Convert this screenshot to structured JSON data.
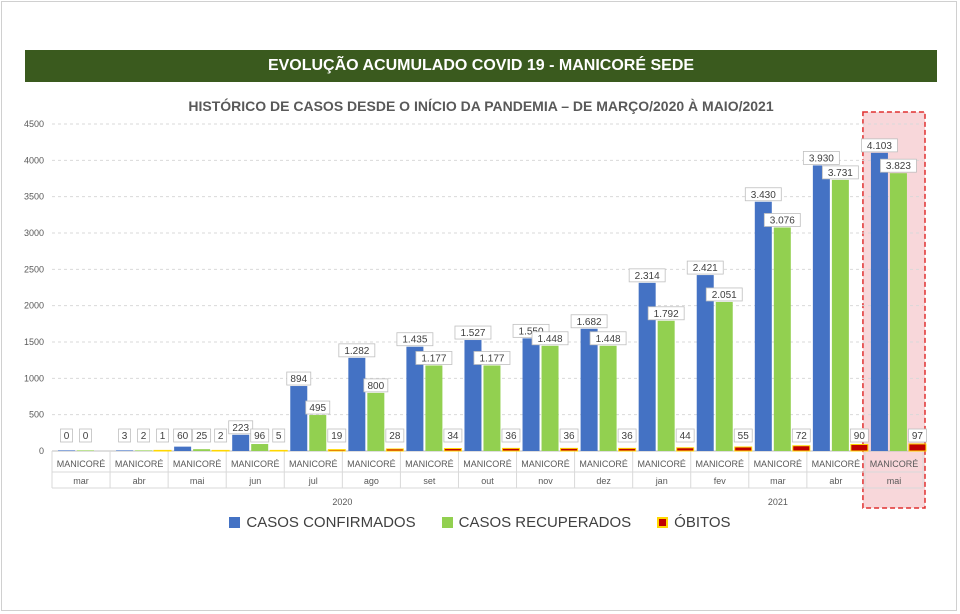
{
  "banner_title": "EVOLUÇÃO ACUMULADO COVID 19 - MANICORÉ SEDE",
  "colors": {
    "banner": "#3a5a1e",
    "confirmados": "#4472c4",
    "recuperados": "#92d050",
    "obitos": "#c00000",
    "obitos_border": "#ffd700",
    "highlight_fill": "#f8d7da",
    "highlight_border": "#e03030"
  },
  "chart_data": {
    "type": "bar",
    "title": "HISTÓRICO DE CASOS DESDE O INÍCIO DA PANDEMIA – DE MARÇO/2020 À MAIO/2021",
    "ylim": [
      0,
      4500
    ],
    "yticks": [
      0,
      500,
      1000,
      1500,
      2000,
      2500,
      3000,
      3500,
      4000,
      4500
    ],
    "grid": true,
    "legend_position": "bottom",
    "category_label": "MANICORÉ",
    "categories": [
      "mar",
      "abr",
      "mai",
      "jun",
      "jul",
      "ago",
      "set",
      "out",
      "nov",
      "dez",
      "jan",
      "fev",
      "mar",
      "abr",
      "mai"
    ],
    "years": [
      {
        "label": "2020",
        "start": 0,
        "end": 9
      },
      {
        "label": "2021",
        "start": 10,
        "end": 14
      }
    ],
    "series": [
      {
        "name": "CASOS CONFIRMADOS",
        "key": "confirmados",
        "values": [
          0,
          3,
          60,
          223,
          894,
          1282,
          1435,
          1527,
          1550,
          1682,
          2314,
          2421,
          3430,
          3930,
          4103
        ],
        "labels": [
          "0",
          "3",
          "60",
          "223",
          "894",
          "1.282",
          "1.435",
          "1.527",
          "1.550",
          "1.682",
          "2.314",
          "2.421",
          "3.430",
          "3.930",
          "4.103"
        ]
      },
      {
        "name": "CASOS RECUPERADOS",
        "key": "recuperados",
        "values": [
          0,
          2,
          25,
          96,
          495,
          800,
          1177,
          1177,
          1448,
          1448,
          1792,
          2051,
          3076,
          3731,
          3823
        ],
        "labels": [
          "0",
          "2",
          "25",
          "96",
          "495",
          "800",
          "1.177",
          "1.177",
          "1.448",
          "1.448",
          "1.792",
          "2.051",
          "3.076",
          "3.731",
          "3.823"
        ]
      },
      {
        "name": "ÓBITOS",
        "key": "obitos",
        "values": [
          null,
          1,
          2,
          5,
          19,
          28,
          34,
          36,
          36,
          36,
          44,
          55,
          72,
          90,
          97
        ],
        "labels": [
          null,
          "1",
          "2",
          "5",
          "19",
          "28",
          "34",
          "36",
          "36",
          "36",
          "44",
          "55",
          "72",
          "90",
          "97"
        ]
      }
    ],
    "highlighted_category": "mai"
  }
}
